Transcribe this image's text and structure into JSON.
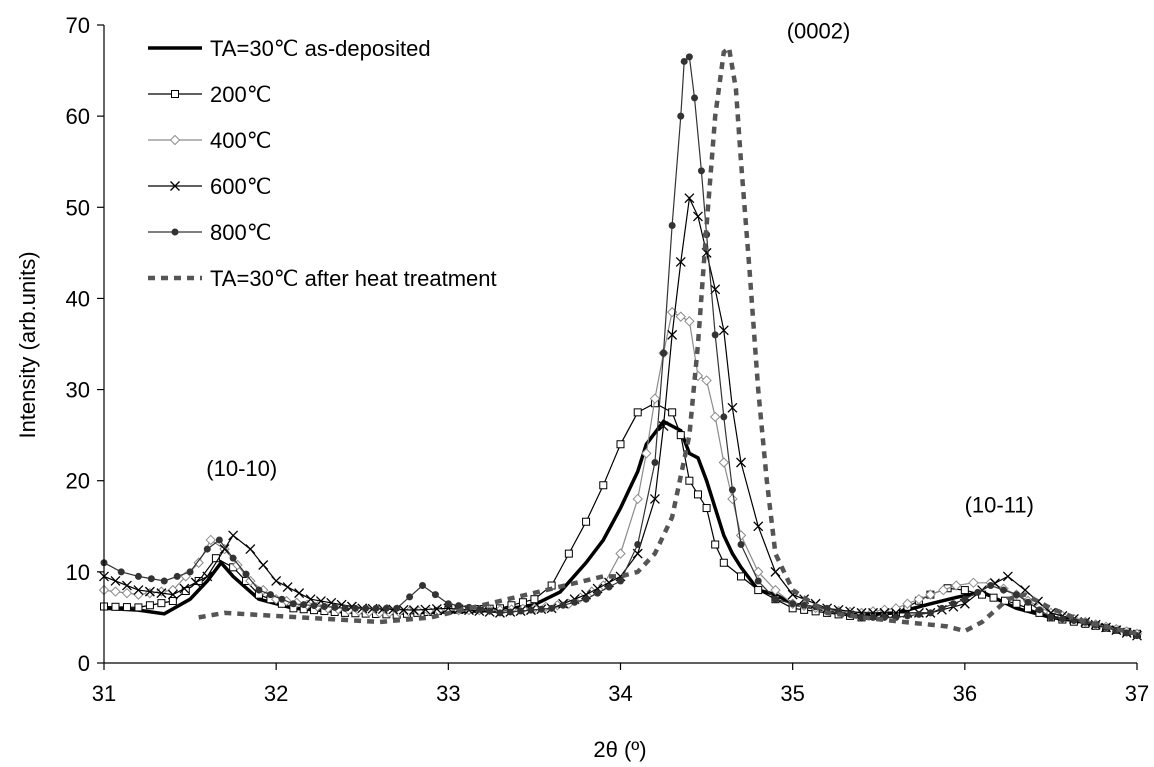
{
  "chart_data": {
    "type": "line",
    "title": "",
    "xlabel": "2θ (º)",
    "ylabel": "Intensity (arb.units)",
    "xlim": [
      31,
      37
    ],
    "ylim": [
      0,
      70
    ],
    "x_ticks": [
      "31",
      "32",
      "33",
      "34",
      "35",
      "36",
      "37"
    ],
    "y_ticks": [
      "0",
      "10",
      "20",
      "30",
      "40",
      "50",
      "60",
      "70"
    ],
    "grid": false,
    "legend_position": "top-left",
    "annotations": [
      {
        "text": "(10-10)",
        "x": 31.8,
        "y": 20.5
      },
      {
        "text": "(0002)",
        "x": 35.15,
        "y": 68.5
      },
      {
        "text": "(10-11)",
        "x": 36.2,
        "y": 16.5
      }
    ],
    "series": [
      {
        "name": "TA=30℃ as-deposited",
        "style": "thick",
        "color": "#000000",
        "points": [
          [
            31.0,
            6.0
          ],
          [
            31.2,
            5.8
          ],
          [
            31.35,
            5.4
          ],
          [
            31.5,
            7.0
          ],
          [
            31.6,
            9.0
          ],
          [
            31.68,
            11.0
          ],
          [
            31.75,
            9.5
          ],
          [
            31.9,
            7.0
          ],
          [
            32.1,
            6.0
          ],
          [
            32.4,
            5.6
          ],
          [
            32.7,
            5.5
          ],
          [
            33.0,
            5.6
          ],
          [
            33.3,
            5.8
          ],
          [
            33.5,
            6.4
          ],
          [
            33.65,
            7.8
          ],
          [
            33.8,
            11.0
          ],
          [
            33.9,
            13.5
          ],
          [
            34.0,
            17.0
          ],
          [
            34.05,
            19.0
          ],
          [
            34.1,
            21.0
          ],
          [
            34.15,
            24.0
          ],
          [
            34.25,
            26.5
          ],
          [
            34.3,
            26.0
          ],
          [
            34.35,
            25.5
          ],
          [
            34.4,
            23.0
          ],
          [
            34.45,
            22.5
          ],
          [
            34.5,
            20.0
          ],
          [
            34.55,
            17.0
          ],
          [
            34.6,
            14.0
          ],
          [
            34.65,
            12.0
          ],
          [
            34.7,
            10.5
          ],
          [
            34.8,
            8.0
          ],
          [
            34.9,
            7.5
          ],
          [
            35.0,
            6.5
          ],
          [
            35.2,
            5.8
          ],
          [
            35.4,
            5.3
          ],
          [
            35.6,
            5.5
          ],
          [
            35.8,
            6.5
          ],
          [
            35.95,
            7.2
          ],
          [
            36.1,
            7.8
          ],
          [
            36.3,
            6.0
          ],
          [
            36.5,
            5.0
          ],
          [
            36.7,
            4.5
          ],
          [
            37.0,
            3.2
          ]
        ]
      },
      {
        "name": "200℃",
        "style": "square",
        "color": "#000000",
        "points": [
          [
            31.0,
            6.2
          ],
          [
            31.2,
            6.1
          ],
          [
            31.4,
            6.8
          ],
          [
            31.55,
            9.0
          ],
          [
            31.65,
            11.5
          ],
          [
            31.75,
            10.5
          ],
          [
            31.9,
            7.5
          ],
          [
            32.1,
            6.0
          ],
          [
            32.4,
            5.5
          ],
          [
            32.7,
            5.3
          ],
          [
            33.0,
            5.8
          ],
          [
            33.3,
            6.0
          ],
          [
            33.5,
            7.0
          ],
          [
            33.6,
            8.5
          ],
          [
            33.7,
            12.0
          ],
          [
            33.8,
            15.5
          ],
          [
            33.9,
            19.5
          ],
          [
            34.0,
            24.0
          ],
          [
            34.1,
            27.5
          ],
          [
            34.2,
            28.5
          ],
          [
            34.3,
            27.5
          ],
          [
            34.35,
            25.0
          ],
          [
            34.4,
            20.0
          ],
          [
            34.45,
            18.5
          ],
          [
            34.5,
            17.0
          ],
          [
            34.55,
            13.0
          ],
          [
            34.6,
            11.0
          ],
          [
            34.7,
            9.5
          ],
          [
            34.8,
            8.0
          ],
          [
            34.9,
            7.0
          ],
          [
            35.0,
            6.0
          ],
          [
            35.2,
            5.5
          ],
          [
            35.4,
            5.0
          ],
          [
            35.6,
            5.5
          ],
          [
            35.8,
            7.5
          ],
          [
            35.9,
            8.2
          ],
          [
            36.0,
            8.0
          ],
          [
            36.1,
            7.5
          ],
          [
            36.3,
            6.5
          ],
          [
            36.5,
            5.0
          ],
          [
            36.7,
            4.3
          ],
          [
            37.0,
            3.2
          ]
        ]
      },
      {
        "name": "400℃",
        "style": "diamond",
        "color": "#8c8c8c",
        "points": [
          [
            31.0,
            8.0
          ],
          [
            31.2,
            7.5
          ],
          [
            31.4,
            8.0
          ],
          [
            31.55,
            11.0
          ],
          [
            31.62,
            13.5
          ],
          [
            31.7,
            12.5
          ],
          [
            31.85,
            9.0
          ],
          [
            32.0,
            7.0
          ],
          [
            32.3,
            6.0
          ],
          [
            32.6,
            5.5
          ],
          [
            33.0,
            5.8
          ],
          [
            33.3,
            5.8
          ],
          [
            33.5,
            6.0
          ],
          [
            33.7,
            6.5
          ],
          [
            33.9,
            8.5
          ],
          [
            34.0,
            12.0
          ],
          [
            34.1,
            18.0
          ],
          [
            34.15,
            23.0
          ],
          [
            34.2,
            29.0
          ],
          [
            34.25,
            34.0
          ],
          [
            34.3,
            38.5
          ],
          [
            34.35,
            38.0
          ],
          [
            34.4,
            37.5
          ],
          [
            34.45,
            31.5
          ],
          [
            34.5,
            31.0
          ],
          [
            34.55,
            27.0
          ],
          [
            34.6,
            22.0
          ],
          [
            34.65,
            18.0
          ],
          [
            34.7,
            14.0
          ],
          [
            34.8,
            10.0
          ],
          [
            34.9,
            8.0
          ],
          [
            35.0,
            6.5
          ],
          [
            35.2,
            5.8
          ],
          [
            35.4,
            5.5
          ],
          [
            35.6,
            6.0
          ],
          [
            35.8,
            7.5
          ],
          [
            35.95,
            8.5
          ],
          [
            36.05,
            8.8
          ],
          [
            36.15,
            8.8
          ],
          [
            36.3,
            7.5
          ],
          [
            36.5,
            5.5
          ],
          [
            36.7,
            4.5
          ],
          [
            37.0,
            3.2
          ]
        ]
      },
      {
        "name": "600℃",
        "style": "cross",
        "color": "#000000",
        "points": [
          [
            31.0,
            9.5
          ],
          [
            31.2,
            8.0
          ],
          [
            31.4,
            7.5
          ],
          [
            31.6,
            9.5
          ],
          [
            31.7,
            12.5
          ],
          [
            31.75,
            14.0
          ],
          [
            31.85,
            12.5
          ],
          [
            32.0,
            9.0
          ],
          [
            32.2,
            7.0
          ],
          [
            32.5,
            6.0
          ],
          [
            32.8,
            5.8
          ],
          [
            33.0,
            6.0
          ],
          [
            33.3,
            5.5
          ],
          [
            33.6,
            6.0
          ],
          [
            33.8,
            7.5
          ],
          [
            34.0,
            9.5
          ],
          [
            34.1,
            12.0
          ],
          [
            34.2,
            18.0
          ],
          [
            34.25,
            26.0
          ],
          [
            34.3,
            36.0
          ],
          [
            34.35,
            44.0
          ],
          [
            34.4,
            51.0
          ],
          [
            34.45,
            49.0
          ],
          [
            34.5,
            45.0
          ],
          [
            34.55,
            41.0
          ],
          [
            34.6,
            36.5
          ],
          [
            34.65,
            28.0
          ],
          [
            34.7,
            22.0
          ],
          [
            34.8,
            15.0
          ],
          [
            34.9,
            10.0
          ],
          [
            35.0,
            7.5
          ],
          [
            35.2,
            6.0
          ],
          [
            35.4,
            5.5
          ],
          [
            35.6,
            5.5
          ],
          [
            35.8,
            5.5
          ],
          [
            36.0,
            6.5
          ],
          [
            36.1,
            8.0
          ],
          [
            36.25,
            9.5
          ],
          [
            36.35,
            8.0
          ],
          [
            36.5,
            5.5
          ],
          [
            36.7,
            4.5
          ],
          [
            37.0,
            3.0
          ]
        ]
      },
      {
        "name": "800℃",
        "style": "dot",
        "color": "#333333",
        "points": [
          [
            31.0,
            11.0
          ],
          [
            31.1,
            10.0
          ],
          [
            31.2,
            9.5
          ],
          [
            31.35,
            9.0
          ],
          [
            31.5,
            10.0
          ],
          [
            31.6,
            12.5
          ],
          [
            31.67,
            13.5
          ],
          [
            31.75,
            11.5
          ],
          [
            31.9,
            8.0
          ],
          [
            32.1,
            6.5
          ],
          [
            32.4,
            6.0
          ],
          [
            32.7,
            6.0
          ],
          [
            32.85,
            8.5
          ],
          [
            33.0,
            6.5
          ],
          [
            33.3,
            5.5
          ],
          [
            33.6,
            6.0
          ],
          [
            33.8,
            7.0
          ],
          [
            34.0,
            9.0
          ],
          [
            34.1,
            13.0
          ],
          [
            34.2,
            22.0
          ],
          [
            34.25,
            34.0
          ],
          [
            34.3,
            48.0
          ],
          [
            34.35,
            60.0
          ],
          [
            34.37,
            66.0
          ],
          [
            34.4,
            66.5
          ],
          [
            34.43,
            62.0
          ],
          [
            34.47,
            54.0
          ],
          [
            34.5,
            47.0
          ],
          [
            34.55,
            36.0
          ],
          [
            34.6,
            27.0
          ],
          [
            34.65,
            19.0
          ],
          [
            34.7,
            13.0
          ],
          [
            34.8,
            9.0
          ],
          [
            34.9,
            7.0
          ],
          [
            35.0,
            6.5
          ],
          [
            35.2,
            6.0
          ],
          [
            35.4,
            5.0
          ],
          [
            35.6,
            5.0
          ],
          [
            35.8,
            5.5
          ],
          [
            36.0,
            7.0
          ],
          [
            36.15,
            8.5
          ],
          [
            36.3,
            7.5
          ],
          [
            36.5,
            5.0
          ],
          [
            36.7,
            4.5
          ],
          [
            37.0,
            3.0
          ]
        ]
      },
      {
        "name": "TA=30℃ after heat treatment",
        "style": "dashed",
        "color": "#555555",
        "points": [
          [
            31.55,
            5.0
          ],
          [
            31.7,
            5.5
          ],
          [
            32.6,
            4.5
          ],
          [
            32.9,
            5.0
          ],
          [
            33.9,
            9.5
          ],
          [
            34.0,
            9.5
          ],
          [
            34.1,
            10.0
          ],
          [
            34.2,
            12.0
          ],
          [
            34.3,
            16.0
          ],
          [
            34.4,
            25.0
          ],
          [
            34.45,
            35.0
          ],
          [
            34.5,
            48.0
          ],
          [
            34.55,
            60.0
          ],
          [
            34.6,
            67.0
          ],
          [
            34.63,
            67.5
          ],
          [
            34.67,
            63.0
          ],
          [
            34.7,
            55.0
          ],
          [
            34.75,
            43.0
          ],
          [
            34.8,
            30.0
          ],
          [
            34.85,
            20.0
          ],
          [
            34.9,
            12.0
          ],
          [
            35.0,
            8.0
          ],
          [
            35.2,
            5.5
          ],
          [
            35.5,
            4.8
          ],
          [
            35.9,
            4.0
          ],
          [
            36.0,
            3.5
          ],
          [
            36.1,
            4.5
          ],
          [
            36.25,
            7.0
          ],
          [
            36.35,
            7.5
          ],
          [
            36.5,
            6.0
          ],
          [
            36.7,
            4.5
          ],
          [
            37.0,
            3.2
          ]
        ]
      }
    ]
  }
}
